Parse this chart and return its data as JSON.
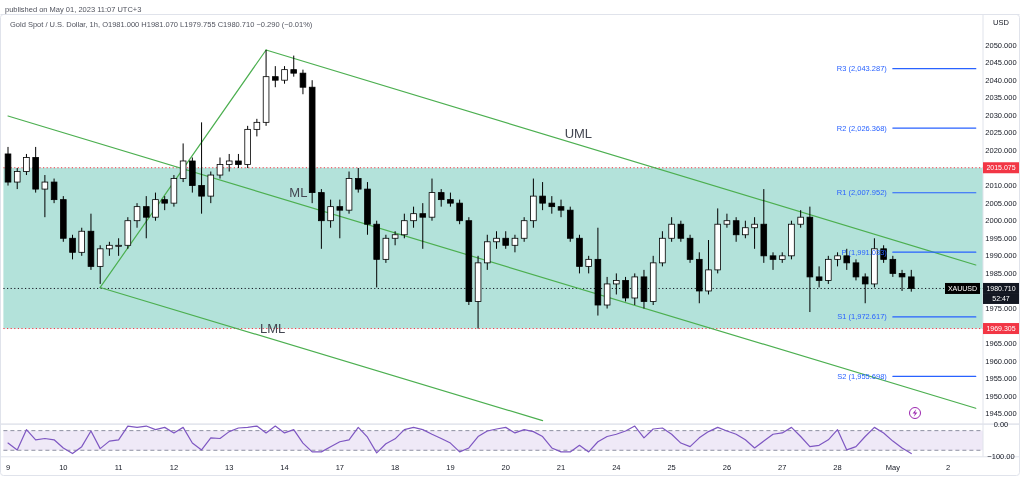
{
  "chart_data": [
    {
      "type": "candlestick",
      "title": "Gold Spot / U.S. Dollar, 1h, O1981.000 H1981.070 L1979.755 C1980.710 −0.290 (−0.01%)",
      "ylabel": "USD",
      "categories": [
        null,
        null,
        null,
        null,
        null,
        null,
        null,
        null,
        null,
        null,
        null,
        null,
        null,
        null,
        null,
        null,
        null,
        null,
        null,
        null,
        null,
        null,
        null,
        null,
        null,
        null,
        null,
        null,
        null,
        null,
        null,
        null,
        null,
        null,
        null,
        null,
        null,
        null,
        null,
        null,
        null,
        null,
        null,
        null,
        null,
        null,
        null,
        null,
        null,
        null,
        null,
        null,
        null,
        null,
        null,
        null,
        null,
        null,
        null,
        null,
        null,
        null,
        null,
        null,
        null,
        null,
        null,
        null,
        null,
        null,
        null,
        null,
        null,
        null,
        null,
        null,
        null,
        null,
        null,
        null,
        null,
        null,
        null,
        null,
        null,
        null,
        null,
        null,
        null,
        null,
        null,
        null,
        null,
        null,
        null,
        null,
        null,
        null,
        null,
        null,
        null,
        null,
        null,
        null,
        null,
        null
      ],
      "series": [
        {
          "name": "XAUUSD",
          "color": "#000000",
          "ohlc": [
            [
              2019,
              2021,
              2010,
              2011
            ],
            [
              2011,
              2015,
              2009,
              2014
            ],
            [
              2014,
              2019,
              2013,
              2018
            ],
            [
              2018,
              2021,
              2008,
              2009
            ],
            [
              2009,
              2013,
              2001,
              2011
            ],
            [
              2011,
              2012,
              2005,
              2006
            ],
            [
              2006,
              2007,
              1994,
              1995
            ],
            [
              1995,
              1996,
              1989,
              1991
            ],
            [
              1991,
              1998,
              1990,
              1997
            ],
            [
              1997,
              2002,
              1986,
              1987
            ],
            [
              1987,
              1993,
              1982,
              1992
            ],
            [
              1992,
              1994,
              1990,
              1993
            ],
            [
              1993,
              1995,
              1990,
              1993
            ],
            [
              1993,
              2001,
              1992,
              2000
            ],
            [
              2000,
              2005,
              1998,
              2004
            ],
            [
              2004,
              2007,
              1995,
              2001
            ],
            [
              2001,
              2008,
              2000,
              2006
            ],
            [
              2006,
              2007,
              2003,
              2005
            ],
            [
              2005,
              2013,
              2004,
              2012
            ],
            [
              2012,
              2022,
              2011,
              2017
            ],
            [
              2017,
              2018,
              2008,
              2010
            ],
            [
              2010,
              2028,
              2002,
              2007
            ],
            [
              2007,
              2014,
              2005,
              2013
            ],
            [
              2013,
              2018,
              2012,
              2016
            ],
            [
              2016,
              2019,
              2014,
              2017
            ],
            [
              2017,
              2019,
              2015,
              2016
            ],
            [
              2016,
              2027,
              2015,
              2026
            ],
            [
              2026,
              2029,
              2024,
              2028
            ],
            [
              2028,
              2048.6,
              2027,
              2041
            ],
            [
              2041,
              2044,
              2038,
              2040
            ],
            [
              2040,
              2044,
              2039,
              2043
            ],
            [
              2043,
              2047,
              2041,
              2042
            ],
            [
              2042,
              2043,
              2036,
              2038
            ],
            [
              2038,
              2040,
              2005,
              2008
            ],
            [
              2008,
              2009,
              1992,
              2000
            ],
            [
              2000,
              2006,
              1998,
              2004
            ],
            [
              2004,
              2006,
              1995,
              2003
            ],
            [
              2003,
              2014,
              2002,
              2012
            ],
            [
              2012,
              2015,
              2008,
              2009
            ],
            [
              2009,
              2011,
              1996,
              1999
            ],
            [
              1999,
              2000,
              1981,
              1989
            ],
            [
              1989,
              1996,
              1988,
              1995
            ],
            [
              1995,
              1997,
              1993,
              1996
            ],
            [
              1996,
              2002,
              1995,
              2000
            ],
            [
              2000,
              2004,
              1998,
              2002
            ],
            [
              2002,
              2005,
              1992,
              2001
            ],
            [
              2001,
              2012,
              2000,
              2008
            ],
            [
              2008,
              2009,
              2004,
              2006
            ],
            [
              2006,
              2008,
              2004,
              2005
            ],
            [
              2005,
              2006,
              1999,
              2000
            ],
            [
              2000,
              2001,
              1976,
              1977
            ],
            [
              1977,
              1990,
              1969.3,
              1988
            ],
            [
              1988,
              1996,
              1986,
              1994
            ],
            [
              1994,
              1997,
              1992,
              1995
            ],
            [
              1995,
              1997,
              1992,
              1993
            ],
            [
              1993,
              1996,
              1991,
              1995
            ],
            [
              1995,
              2001,
              1994,
              2000
            ],
            [
              2000,
              2012,
              1998,
              2007
            ],
            [
              2007,
              2011,
              2003,
              2005
            ],
            [
              2005,
              2007,
              2002,
              2004
            ],
            [
              2004,
              2006,
              2001,
              2003
            ],
            [
              2003,
              2004,
              1994,
              1995
            ],
            [
              1995,
              1996,
              1985,
              1987
            ],
            [
              1987,
              1990,
              1985,
              1989
            ],
            [
              1989,
              1998,
              1973,
              1976
            ],
            [
              1976,
              1984,
              1975,
              1982
            ],
            [
              1982,
              1985,
              1979,
              1983
            ],
            [
              1983,
              1984,
              1977,
              1978
            ],
            [
              1978,
              1985,
              1976,
              1984
            ],
            [
              1984,
              1986,
              1975,
              1977
            ],
            [
              1977,
              1990,
              1976,
              1988
            ],
            [
              1988,
              1997,
              1987,
              1995
            ],
            [
              1995,
              2001,
              1994,
              1999
            ],
            [
              1999,
              2000,
              1994,
              1995
            ],
            [
              1995,
              1996,
              1988,
              1989
            ],
            [
              1989,
              1991,
              1976.5,
              1980
            ],
            [
              1980,
              1994.5,
              1979,
              1986
            ],
            [
              1986,
              2003.5,
              1985,
              1999
            ],
            [
              1999,
              2002,
              1998,
              2000
            ],
            [
              2000,
              2001,
              1994,
              1996
            ],
            [
              1996,
              2000,
              1995,
              1998
            ],
            [
              1998,
              2001,
              1992,
              1999
            ],
            [
              1999,
              2009,
              1988,
              1990
            ],
            [
              1990,
              1991,
              1986,
              1989
            ],
            [
              1989,
              1991,
              1988,
              1990
            ],
            [
              1990,
              2000,
              1989,
              1999
            ],
            [
              1999,
              2003,
              1998,
              2001
            ],
            [
              2001,
              2004,
              1974,
              1984
            ],
            [
              1984,
              1987,
              1981,
              1983
            ],
            [
              1983,
              1990,
              1982,
              1989
            ],
            [
              1989,
              1991,
              1987,
              1990
            ],
            [
              1990,
              1992,
              1986,
              1988
            ],
            [
              1988,
              1989,
              1983,
              1984
            ],
            [
              1984,
              1985,
              1976.5,
              1982
            ],
            [
              1982,
              1995,
              1981,
              1992
            ],
            [
              1992,
              1993,
              1988,
              1989
            ],
            [
              1989,
              1990,
              1984,
              1985
            ],
            [
              1985,
              1986,
              1980,
              1984
            ],
            [
              1984,
              1986,
              1979.8,
              1980.71
            ],
            null,
            null,
            null,
            null,
            null,
            null,
            null
          ]
        },
        {
          "type": "line",
          "color": "#4caf50",
          "values": [
            null,
            null,
            null,
            null,
            null,
            null,
            null,
            null,
            null,
            null,
            1981,
            null,
            null,
            null,
            null,
            null,
            null,
            null,
            null,
            null,
            null,
            null,
            null,
            null,
            null,
            null,
            null,
            null,
            2048.6,
            null,
            null,
            null,
            null,
            null,
            null,
            null,
            null,
            null,
            null,
            null,
            null,
            null,
            null,
            null,
            null,
            null,
            null,
            null,
            null,
            null,
            null,
            null,
            null,
            null,
            null,
            null,
            null,
            null,
            null,
            null,
            null,
            null,
            null,
            null,
            null,
            null,
            null,
            null,
            null,
            null,
            null,
            null,
            null,
            null,
            null,
            null,
            null,
            null,
            null,
            null,
            null,
            null,
            null,
            null,
            null,
            null,
            null,
            null,
            null,
            null,
            null,
            null,
            null,
            null,
            null,
            null,
            null,
            null,
            null,
            null,
            null,
            null,
            null,
            null,
            null,
            null
          ]
        },
        {
          "type": "line",
          "name": "UML",
          "color": "#4caf50",
          "values": [
            null,
            null,
            null,
            null,
            null,
            null,
            null,
            null,
            null,
            null,
            null,
            null,
            null,
            null,
            null,
            null,
            null,
            null,
            null,
            null,
            null,
            null,
            null,
            null,
            null,
            null,
            null,
            null,
            2048.6,
            null,
            null,
            null,
            null,
            null,
            null,
            null,
            null,
            null,
            null,
            null,
            null,
            null,
            null,
            null,
            null,
            null,
            null,
            null,
            null,
            null,
            null,
            null,
            null,
            null,
            null,
            null,
            null,
            null,
            null,
            null,
            null,
            null,
            null,
            null,
            null,
            null,
            null,
            null,
            null,
            null,
            null,
            null,
            null,
            null,
            null,
            null,
            null,
            null,
            null,
            null,
            null,
            null,
            null,
            null,
            null,
            null,
            null,
            null,
            null,
            null,
            null,
            null,
            null,
            null,
            null,
            null,
            null,
            null,
            null,
            null,
            null,
            null,
            null,
            null,
            null,
            1987.4
          ]
        },
        {
          "type": "line",
          "name": "ML",
          "color": "#4caf50",
          "values": [
            2029.8,
            null,
            null,
            null,
            null,
            null,
            null,
            null,
            null,
            null,
            null,
            null,
            null,
            null,
            null,
            null,
            null,
            null,
            null,
            null,
            null,
            null,
            null,
            null,
            null,
            null,
            null,
            null,
            null,
            null,
            null,
            null,
            null,
            null,
            null,
            null,
            null,
            null,
            null,
            null,
            null,
            null,
            null,
            null,
            null,
            null,
            null,
            null,
            null,
            null,
            null,
            null,
            null,
            null,
            null,
            null,
            null,
            null,
            null,
            null,
            null,
            null,
            null,
            null,
            null,
            null,
            null,
            null,
            null,
            null,
            null,
            null,
            null,
            null,
            null,
            null,
            null,
            null,
            null,
            null,
            null,
            null,
            null,
            null,
            null,
            null,
            null,
            null,
            null,
            null,
            null,
            null,
            null,
            null,
            null,
            null,
            null,
            null,
            null,
            null,
            null,
            null,
            null,
            null,
            null,
            1946.6
          ]
        },
        {
          "type": "line",
          "name": "LML",
          "color": "#4caf50",
          "values": [
            null,
            null,
            null,
            null,
            null,
            null,
            null,
            null,
            null,
            null,
            1981,
            null,
            null,
            null,
            null,
            null,
            null,
            null,
            null,
            null,
            null,
            null,
            null,
            null,
            null,
            null,
            null,
            null,
            null,
            null,
            null,
            null,
            null,
            null,
            null,
            null,
            null,
            null,
            null,
            null,
            null,
            null,
            null,
            null,
            null,
            null,
            null,
            null,
            null,
            null,
            null,
            null,
            null,
            null,
            null,
            null,
            null,
            null,
            1943.1,
            null,
            null,
            null,
            null,
            null,
            null,
            null,
            null,
            null,
            null,
            null,
            null,
            null,
            null,
            null,
            null,
            null,
            null,
            null,
            null,
            null,
            null,
            null,
            null,
            null,
            null,
            null,
            null,
            null,
            null,
            null,
            null,
            null,
            null,
            null,
            null,
            null,
            null,
            null,
            null,
            null,
            null,
            null,
            null,
            null,
            null,
            null
          ]
        },
        {
          "type": "line",
          "name": "R3 (2,043.287)",
          "color": "#2962ff",
          "values": [
            null,
            null,
            null,
            null,
            null,
            null,
            null,
            null,
            null,
            null,
            null,
            null,
            null,
            null,
            null,
            null,
            null,
            null,
            null,
            null,
            null,
            null,
            null,
            null,
            null,
            null,
            null,
            null,
            null,
            null,
            null,
            null,
            null,
            null,
            null,
            null,
            null,
            null,
            null,
            null,
            null,
            null,
            null,
            null,
            null,
            null,
            null,
            null,
            null,
            null,
            null,
            null,
            null,
            null,
            null,
            null,
            null,
            null,
            null,
            null,
            null,
            null,
            null,
            null,
            null,
            null,
            null,
            null,
            null,
            null,
            null,
            null,
            null,
            null,
            null,
            null,
            null,
            null,
            null,
            null,
            null,
            null,
            null,
            null,
            null,
            null,
            null,
            null,
            null,
            null,
            null,
            null,
            null,
            null,
            null,
            null,
            2043.287,
            2043.287,
            2043.287,
            2043.287,
            2043.287,
            2043.287,
            2043.287,
            2043.287,
            2043.287,
            2043.287
          ]
        },
        {
          "type": "line",
          "name": "R2 (2,026.368)",
          "color": "#2962ff",
          "values": [
            null,
            null,
            null,
            null,
            null,
            null,
            null,
            null,
            null,
            null,
            null,
            null,
            null,
            null,
            null,
            null,
            null,
            null,
            null,
            null,
            null,
            null,
            null,
            null,
            null,
            null,
            null,
            null,
            null,
            null,
            null,
            null,
            null,
            null,
            null,
            null,
            null,
            null,
            null,
            null,
            null,
            null,
            null,
            null,
            null,
            null,
            null,
            null,
            null,
            null,
            null,
            null,
            null,
            null,
            null,
            null,
            null,
            null,
            null,
            null,
            null,
            null,
            null,
            null,
            null,
            null,
            null,
            null,
            null,
            null,
            null,
            null,
            null,
            null,
            null,
            null,
            null,
            null,
            null,
            null,
            null,
            null,
            null,
            null,
            null,
            null,
            null,
            null,
            null,
            null,
            null,
            null,
            null,
            null,
            null,
            null,
            2026.368,
            2026.368,
            2026.368,
            2026.368,
            2026.368,
            2026.368,
            2026.368,
            2026.368,
            2026.368,
            2026.368
          ]
        },
        {
          "type": "line",
          "name": "R1 (2,007.952)",
          "color": "#2962ff",
          "values": [
            null,
            null,
            null,
            null,
            null,
            null,
            null,
            null,
            null,
            null,
            null,
            null,
            null,
            null,
            null,
            null,
            null,
            null,
            null,
            null,
            null,
            null,
            null,
            null,
            null,
            null,
            null,
            null,
            null,
            null,
            null,
            null,
            null,
            null,
            null,
            null,
            null,
            null,
            null,
            null,
            null,
            null,
            null,
            null,
            null,
            null,
            null,
            null,
            null,
            null,
            null,
            null,
            null,
            null,
            null,
            null,
            null,
            null,
            null,
            null,
            null,
            null,
            null,
            null,
            null,
            null,
            null,
            null,
            null,
            null,
            null,
            null,
            null,
            null,
            null,
            null,
            null,
            null,
            null,
            null,
            null,
            null,
            null,
            null,
            null,
            null,
            null,
            null,
            null,
            null,
            null,
            null,
            null,
            null,
            null,
            null,
            2007.952,
            2007.952,
            2007.952,
            2007.952,
            2007.952,
            2007.952,
            2007.952,
            2007.952,
            2007.952,
            2007.952
          ]
        },
        {
          "type": "line",
          "name": "P (1,991.033)",
          "color": "#2962ff",
          "values": [
            null,
            null,
            null,
            null,
            null,
            null,
            null,
            null,
            null,
            null,
            null,
            null,
            null,
            null,
            null,
            null,
            null,
            null,
            null,
            null,
            null,
            null,
            null,
            null,
            null,
            null,
            null,
            null,
            null,
            null,
            null,
            null,
            null,
            null,
            null,
            null,
            null,
            null,
            null,
            null,
            null,
            null,
            null,
            null,
            null,
            null,
            null,
            null,
            null,
            null,
            null,
            null,
            null,
            null,
            null,
            null,
            null,
            null,
            null,
            null,
            null,
            null,
            null,
            null,
            null,
            null,
            null,
            null,
            null,
            null,
            null,
            null,
            null,
            null,
            null,
            null,
            null,
            null,
            null,
            null,
            null,
            null,
            null,
            null,
            null,
            null,
            null,
            null,
            null,
            null,
            null,
            null,
            null,
            null,
            null,
            null,
            1991.033,
            1991.033,
            1991.033,
            1991.033,
            1991.033,
            1991.033,
            1991.033,
            1991.033,
            1991.033,
            1991.033
          ]
        },
        {
          "type": "line",
          "name": "S1 (1,972.617)",
          "color": "#2962ff",
          "values": [
            null,
            null,
            null,
            null,
            null,
            null,
            null,
            null,
            null,
            null,
            null,
            null,
            null,
            null,
            null,
            null,
            null,
            null,
            null,
            null,
            null,
            null,
            null,
            null,
            null,
            null,
            null,
            null,
            null,
            null,
            null,
            null,
            null,
            null,
            null,
            null,
            null,
            null,
            null,
            null,
            null,
            null,
            null,
            null,
            null,
            null,
            null,
            null,
            null,
            null,
            null,
            null,
            null,
            null,
            null,
            null,
            null,
            null,
            null,
            null,
            null,
            null,
            null,
            null,
            null,
            null,
            null,
            null,
            null,
            null,
            null,
            null,
            null,
            null,
            null,
            null,
            null,
            null,
            null,
            null,
            null,
            null,
            null,
            null,
            null,
            null,
            null,
            null,
            null,
            null,
            null,
            null,
            null,
            null,
            null,
            null,
            1972.617,
            1972.617,
            1972.617,
            1972.617,
            1972.617,
            1972.617,
            1972.617,
            1972.617,
            1972.617,
            1972.617
          ]
        },
        {
          "type": "line",
          "name": "S2 (1,955.698)",
          "color": "#2962ff",
          "values": [
            null,
            null,
            null,
            null,
            null,
            null,
            null,
            null,
            null,
            null,
            null,
            null,
            null,
            null,
            null,
            null,
            null,
            null,
            null,
            null,
            null,
            null,
            null,
            null,
            null,
            null,
            null,
            null,
            null,
            null,
            null,
            null,
            null,
            null,
            null,
            null,
            null,
            null,
            null,
            null,
            null,
            null,
            null,
            null,
            null,
            null,
            null,
            null,
            null,
            null,
            null,
            null,
            null,
            null,
            null,
            null,
            null,
            null,
            null,
            null,
            null,
            null,
            null,
            null,
            null,
            null,
            null,
            null,
            null,
            null,
            null,
            null,
            null,
            null,
            null,
            null,
            null,
            null,
            null,
            null,
            null,
            null,
            null,
            null,
            null,
            null,
            null,
            null,
            null,
            null,
            null,
            null,
            null,
            null,
            null,
            null,
            1955.698,
            1955.698,
            1955.698,
            1955.698,
            1955.698,
            1955.698,
            1955.698,
            1955.698,
            1955.698,
            1955.698
          ]
        }
      ],
      "ylim": [
        1942.1,
        2058.7
      ],
      "yticks": [
        {
          "value": 1945,
          "label": "1945.000"
        },
        {
          "value": 1950,
          "label": "1950.000"
        },
        {
          "value": 1955,
          "label": "1955.000"
        },
        {
          "value": 1960,
          "label": "1960.000"
        },
        {
          "value": 1965,
          "label": "1965.000"
        },
        {
          "value": 1975,
          "label": "1975.000"
        },
        {
          "value": 1985,
          "label": "1985.000"
        },
        {
          "value": 1990,
          "label": "1990.000"
        },
        {
          "value": 1995,
          "label": "1995.000"
        },
        {
          "value": 2000,
          "label": "2000.000"
        },
        {
          "value": 2005,
          "label": "2005.000"
        },
        {
          "value": 2010,
          "label": "2010.000"
        },
        {
          "value": 2020,
          "label": "2020.000"
        },
        {
          "value": 2025,
          "label": "2025.000"
        },
        {
          "value": 2030,
          "label": "2030.000"
        },
        {
          "value": 2035,
          "label": "2035.000"
        },
        {
          "value": 2040,
          "label": "2040.000"
        },
        {
          "value": 2045,
          "label": "2045.000"
        },
        {
          "value": 2050,
          "label": "2050.000"
        }
      ],
      "bands": [
        {
          "axis": "y",
          "from": 1969.305,
          "to": 2015.075,
          "color": "#b3e2da"
        }
      ],
      "ref_lines": [
        {
          "axis": "y",
          "value": 2015.075,
          "label": "2015.075",
          "color": "#f23645",
          "line_style": "dotted"
        },
        {
          "axis": "y",
          "value": 1969.305,
          "label": "1969.305",
          "color": "#f23645",
          "line_style": "dotted"
        },
        {
          "axis": "y",
          "value": 1980.71,
          "label": "1980.710",
          "color": "#131722",
          "line_style": "dotted"
        }
      ],
      "annotations": [
        "published on May 01, 2023 11:07 UTC+3",
        {
          "text": "52:47",
          "y": 1980.71
        }
      ]
    },
    {
      "type": "line",
      "categories": [
        "9",
        null,
        null,
        null,
        null,
        null,
        "10",
        null,
        null,
        null,
        null,
        null,
        "11",
        null,
        null,
        null,
        null,
        null,
        "12",
        null,
        null,
        null,
        null,
        null,
        "13",
        null,
        null,
        null,
        null,
        null,
        "14",
        null,
        null,
        null,
        null,
        null,
        "17",
        null,
        null,
        null,
        null,
        null,
        "18",
        null,
        null,
        null,
        null,
        null,
        "19",
        null,
        null,
        null,
        null,
        null,
        "20",
        null,
        null,
        null,
        null,
        null,
        "21",
        null,
        null,
        null,
        null,
        null,
        "24",
        null,
        null,
        null,
        null,
        null,
        "25",
        null,
        null,
        null,
        null,
        null,
        "26",
        null,
        null,
        null,
        null,
        null,
        "27",
        null,
        null,
        null,
        null,
        null,
        "28",
        null,
        null,
        null,
        null,
        null,
        "May",
        null,
        null,
        null,
        null,
        null,
        "2",
        null,
        null,
        null
      ],
      "values": [
        -58,
        -79,
        -17,
        -48,
        -44,
        -48,
        -73,
        -90,
        -69,
        -21,
        -75,
        -52,
        -48,
        -6,
        -10,
        -6,
        -17,
        -10,
        -27,
        -10,
        -58,
        -79,
        -42,
        -44,
        -23,
        -12,
        -10,
        -6,
        -27,
        -6,
        -27,
        -17,
        -58,
        -85,
        -85,
        -69,
        -54,
        -48,
        -10,
        -40,
        -88,
        -60,
        -45,
        -17,
        -10,
        -17,
        -31,
        -44,
        -58,
        -85,
        -73,
        -38,
        -21,
        -15,
        -10,
        -27,
        -17,
        -23,
        -38,
        -73,
        -85,
        -85,
        -65,
        -85,
        -54,
        -38,
        -31,
        -21,
        -6,
        -42,
        -15,
        -12,
        -31,
        -58,
        -69,
        -42,
        -23,
        -10,
        -21,
        -31,
        -48,
        -73,
        -52,
        -31,
        -27,
        -10,
        -38,
        -69,
        -65,
        -48,
        -17,
        -79,
        -69,
        -38,
        -10,
        -27,
        -52,
        -73,
        -90,
        null,
        null,
        null,
        null,
        null,
        null,
        null
      ],
      "color": "#7e57c2",
      "ylim": [
        -100,
        0
      ],
      "yticks": [
        {
          "value": 0,
          "label": "0.00"
        },
        {
          "value": -100,
          "label": "−100.00"
        }
      ],
      "bands": [
        {
          "axis": "y",
          "from": -80,
          "to": -20,
          "color": "#efe9f7"
        }
      ],
      "ref_lines": [
        {
          "axis": "y",
          "value": -20,
          "color": "#8c8fa0",
          "line_style": "dashed"
        },
        {
          "axis": "y",
          "value": -80,
          "color": "#8c8fa0",
          "line_style": "dashed"
        }
      ]
    }
  ]
}
